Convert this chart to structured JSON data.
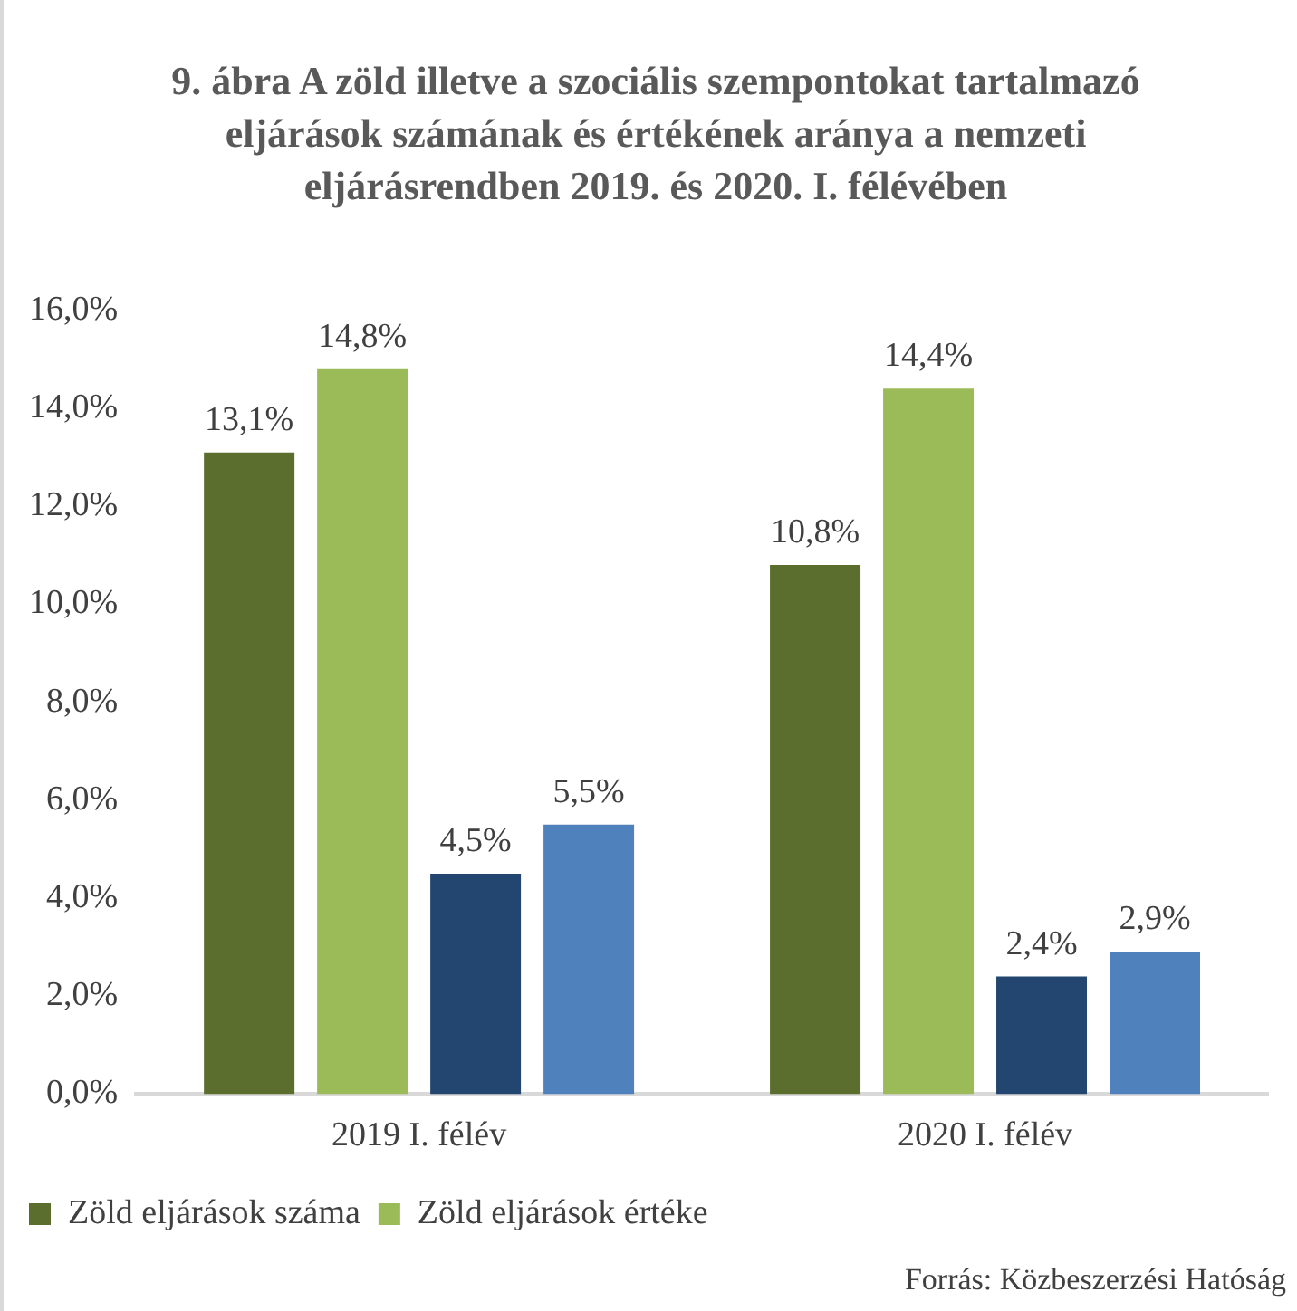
{
  "chart_data": {
    "type": "bar",
    "title": "9. ábra A zöld illetve a szociális szempontokat tartalmazó eljárások számának és értékének aránya a nemzeti eljárásrendben 2019. és 2020. I. félévében",
    "categories": [
      "2019 I. félév",
      "2020 I. félév"
    ],
    "series": [
      {
        "name": "Zöld eljárások száma",
        "color": "#5b6e2d",
        "values": [
          13.1,
          10.8
        ],
        "value_labels": [
          "13,1%",
          "10,8%"
        ]
      },
      {
        "name": "Zöld eljárások értéke",
        "color": "#9bbb59",
        "values": [
          14.8,
          14.4
        ],
        "value_labels": [
          "14,8%",
          "14,4%"
        ]
      },
      {
        "color": "#234670",
        "values": [
          4.5,
          2.4
        ],
        "value_labels": [
          "4,5%",
          "2,4%"
        ]
      },
      {
        "color": "#4f81bd",
        "values": [
          5.5,
          2.9
        ],
        "value_labels": [
          "5,5%",
          "2,9%"
        ]
      }
    ],
    "ylim": [
      0,
      16
    ],
    "yticks": [
      {
        "value": 0,
        "label": "0,0%"
      },
      {
        "value": 2,
        "label": "2,0%"
      },
      {
        "value": 4,
        "label": "4,0%"
      },
      {
        "value": 6,
        "label": "6,0%"
      },
      {
        "value": 8,
        "label": "8,0%"
      },
      {
        "value": 10,
        "label": "10,0%"
      },
      {
        "value": 12,
        "label": "12,0%"
      },
      {
        "value": 14,
        "label": "14,0%"
      },
      {
        "value": 16,
        "label": "16,0%"
      }
    ],
    "grid": false,
    "legend": "bottom",
    "annotations": [
      "Forrás: Közbeszerzési Hatóság"
    ]
  }
}
